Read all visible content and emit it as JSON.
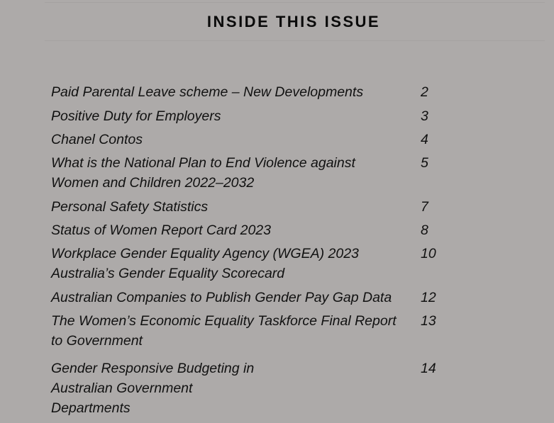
{
  "title": "INSIDE THIS ISSUE",
  "items": [
    {
      "title": "Paid Parental Leave scheme – New Developments",
      "page": "2"
    },
    {
      "title": "Positive Duty for Employers",
      "page": "3"
    },
    {
      "title": "Chanel Contos",
      "page": "4"
    },
    {
      "title": "What is the National Plan to End Violence against Women and Children 2022–2032",
      "page": "5"
    },
    {
      "title": "Personal Safety Statistics",
      "page": "7"
    },
    {
      "title": "Status of Women Report Card 2023",
      "page": "8"
    },
    {
      "title": "Workplace Gender Equality Agency (WGEA) 2023 Australia’s Gender Equality Scorecard",
      "page": "10"
    },
    {
      "title": "Australian Companies to Publish Gender Pay Gap Data",
      "page": "12"
    },
    {
      "title": "The Women’s Economic Equality Taskforce Final Report to Government",
      "page": "13"
    },
    {
      "title": "Gender Responsive Budgeting in Australian Government Departments",
      "page": "14"
    }
  ]
}
